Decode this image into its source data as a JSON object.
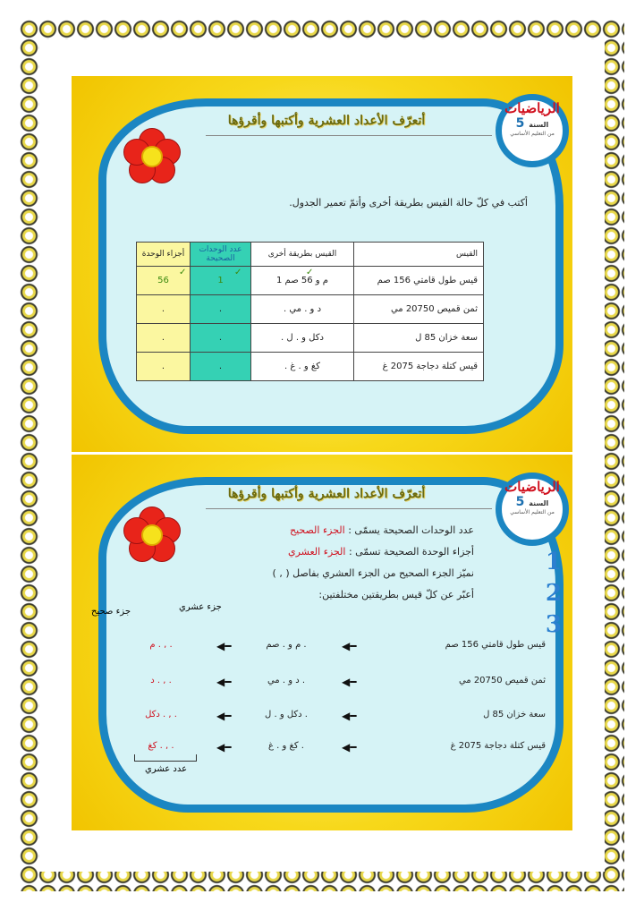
{
  "badge": {
    "subject": "الرياضيات",
    "year_label": "السنة",
    "year": "5",
    "from": "من",
    "level": "التعليم الأساسي"
  },
  "title": "أتعرّف الأعداد العشرية وأكتبها وأقرؤها",
  "exercise": {
    "instruction": "أكتب في كلّ حالة القيس بطريقة أخرى وأتمّ تعمير الجدول.",
    "headers": [
      "القيس",
      "القيس بطريقة أخرى",
      "عدد الوحدات الصحيحة",
      "أجزاء الوحدة"
    ],
    "rows": [
      {
        "measure": "قيس طول قامتي 156 صم",
        "other": "1 م و 56 صم",
        "whole": "1",
        "parts": "56"
      },
      {
        "measure": "ثمن قميص 20750 مي",
        "other": ". د و . مي",
        "whole": ".",
        "parts": "."
      },
      {
        "measure": "سعة خزان 85 ل",
        "other": ". دكل و . ل",
        "whole": ".",
        "parts": "."
      },
      {
        "measure": "قيس كتلة دجاجة 2075 غ",
        "other": ". كغ و . غ",
        "whole": ".",
        "parts": "."
      }
    ],
    "check_mark": "✓"
  },
  "lesson": {
    "def1": {
      "text": "عدد الوحدات الصحيحة يسمّى : ",
      "term": "الجزء الصحيح"
    },
    "def2": {
      "text": "أجزاء الوحدة الصحيحة تسمّى : ",
      "term": "الجزء العشري"
    },
    "def3": "نميّز الجزء الصحيح من الجزء العشري بفاصل ( , )",
    "instruction": "أعبّر عن كلّ قيس بطريقتين مختلفتين:",
    "label_whole": "جزء صحيح",
    "label_decimal": "جزء عشري",
    "label_decimal_number": "عدد عشري",
    "rows": [
      {
        "measure": "قيس طول قامتي 156 صم",
        "way1": ". م و . صم",
        "way2": "م . , ."
      },
      {
        "measure": "ثمن قميص 20750 مي",
        "way1": ". د و . مي",
        "way2": "د . , ."
      },
      {
        "measure": "سعة خزان 85 ل",
        "way1": ". دكل و . ل",
        "way2": "دكل . , ."
      },
      {
        "measure": "قيس كتلة دجاجة 2075 غ",
        "way1": ". كغ و . غ",
        "way2": "كغ . , ."
      }
    ],
    "side_numbers": [
      "1",
      "2",
      "3"
    ]
  },
  "colors": {
    "frame": "#1b86c2",
    "background": "#f7d81a",
    "cloud": "#d6f3f6",
    "whole_col": "#35d1b4",
    "parts_col": "#fbf7a0",
    "accent": "#d0101e"
  }
}
